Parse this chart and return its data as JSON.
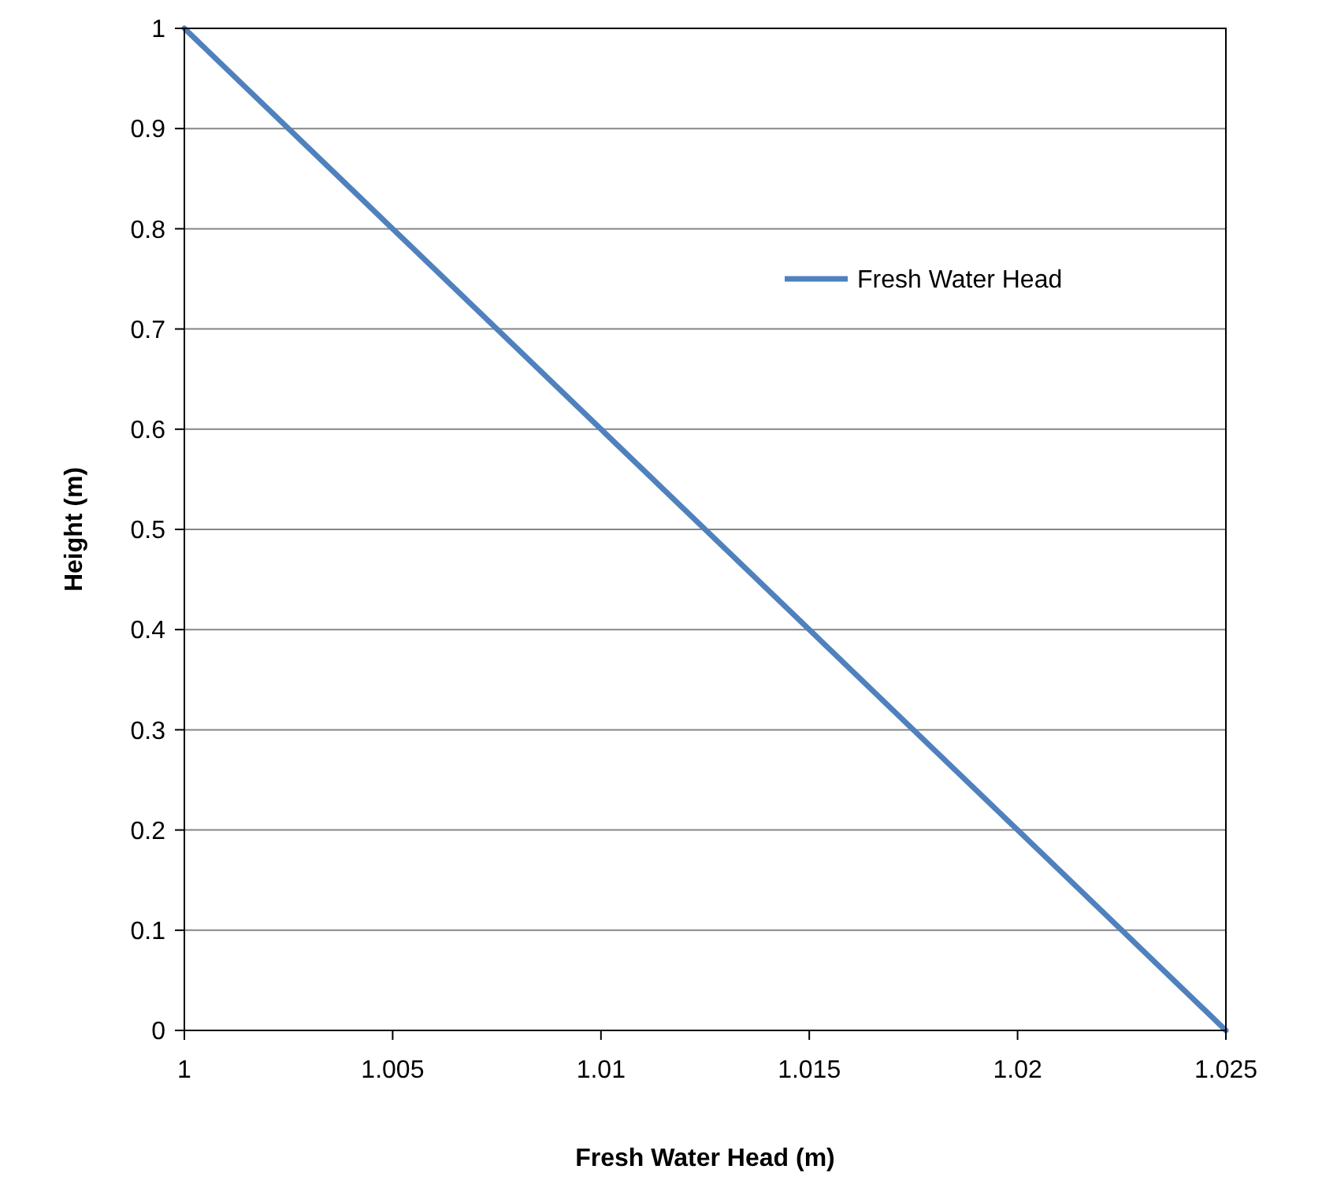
{
  "chart_data": {
    "type": "line",
    "xlabel": "Fresh Water Head (m)",
    "ylabel": "Height (m)",
    "x": [
      1,
      1.0025,
      1.005,
      1.0075,
      1.01,
      1.0125,
      1.015,
      1.0175,
      1.02,
      1.0225,
      1.025
    ],
    "series": [
      {
        "name": "Fresh Water Head",
        "color": "#4f81bd",
        "values": [
          1,
          0.9,
          0.8,
          0.7,
          0.6,
          0.5,
          0.4,
          0.3,
          0.2,
          0.1,
          0
        ]
      }
    ],
    "xlim": [
      1,
      1.025
    ],
    "xticks": [
      1,
      1.005,
      1.01,
      1.015,
      1.02,
      1.025
    ],
    "ylim": [
      0,
      1
    ],
    "yticks": [
      0,
      0.1,
      0.2,
      0.3,
      0.4,
      0.5,
      0.6,
      0.7,
      0.8,
      0.9,
      1
    ],
    "grid": "y",
    "legend": "top right",
    "marker": "none",
    "line_style": "solid"
  }
}
